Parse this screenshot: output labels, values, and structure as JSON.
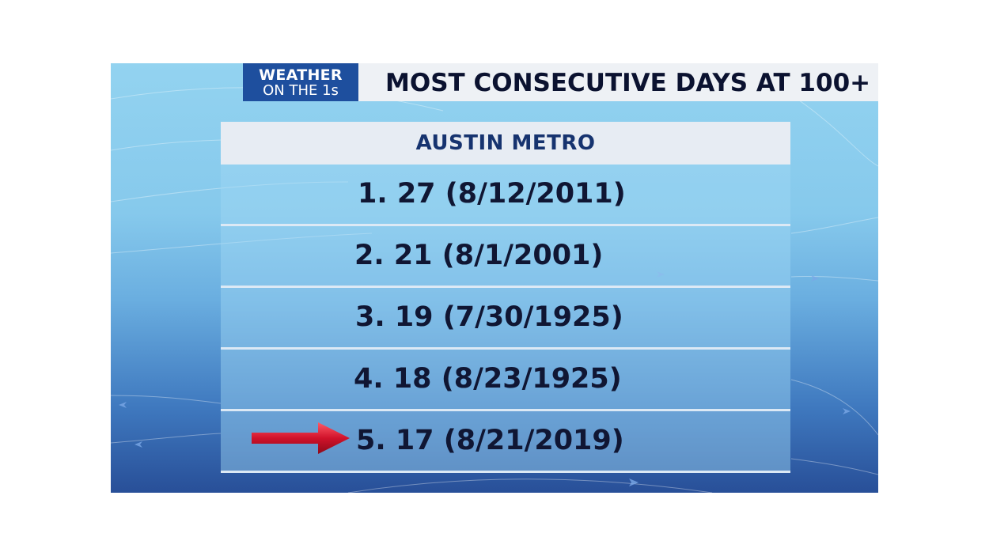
{
  "logo": {
    "line1": "WEATHER",
    "line2": "ON THE 1s"
  },
  "headline": "MOST CONSECUTIVE DAYS AT 100+",
  "subhead": "AUSTIN METRO",
  "rows": [
    {
      "text": "1.  27  (8/12/2011)"
    },
    {
      "text": "2.  21  (8/1/2001)"
    },
    {
      "text": "3.  19  (7/30/1925)"
    },
    {
      "text": "4.  18  (8/23/1925)"
    },
    {
      "text": "5.  17  (8/21/2019)"
    }
  ],
  "colors": {
    "logo_bg": "#1e4f9e",
    "title_text": "#0b1230",
    "subhead_text": "#16336f",
    "arrow": "#d0122a"
  }
}
